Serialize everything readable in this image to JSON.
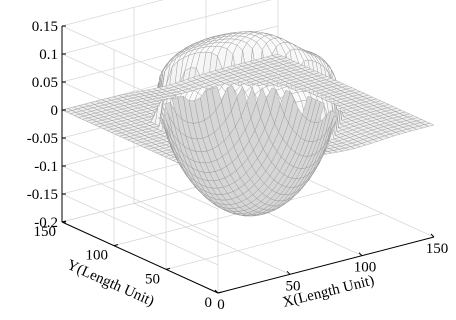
{
  "chart_data": {
    "type": "surface",
    "title": "",
    "xlabel": "X(Length Unit)",
    "ylabel": "Y(Length Unit)",
    "zlabel": "",
    "xlim": [
      0,
      150
    ],
    "ylim": [
      0,
      150
    ],
    "zlim": [
      -0.2,
      0.15
    ],
    "x_ticks": [
      "0",
      "50",
      "100",
      "150"
    ],
    "y_ticks": [
      "0",
      "50",
      "100",
      "150"
    ],
    "z_ticks": [
      "-0.2",
      "-0.15",
      "-0.1",
      "-0.05",
      "0",
      "0.05",
      "0.1",
      "0.15"
    ],
    "grid": true,
    "surface_description_values": {
      "flat_level": 0,
      "lens_center_x": 75,
      "lens_center_y": 75,
      "top_peak": 0.13,
      "bottom_peak": -0.17
    }
  }
}
